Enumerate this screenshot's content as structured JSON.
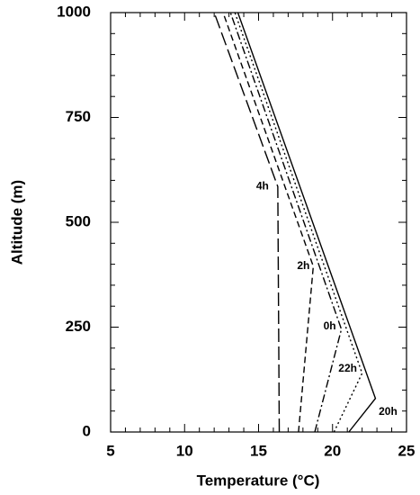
{
  "chart_data": {
    "type": "line",
    "xlabel": "Temperature (°C)",
    "ylabel": "Altitude (m)",
    "xlim": [
      5,
      25
    ],
    "ylim": [
      0,
      1000
    ],
    "xticks": [
      5,
      10,
      15,
      20,
      25
    ],
    "yticks": [
      0,
      250,
      500,
      750,
      1000
    ],
    "xminorticks": [
      6,
      7,
      8,
      9,
      11,
      12,
      13,
      14,
      16,
      17,
      18,
      19,
      21,
      22,
      23,
      24
    ],
    "yminorticks": [
      50,
      100,
      150,
      200,
      300,
      350,
      400,
      450,
      550,
      600,
      650,
      700,
      800,
      850,
      900,
      950
    ],
    "series": [
      {
        "name": "20h",
        "color": "#000000",
        "dash": "none",
        "x": [
          21.1,
          22.9,
          13.6
        ],
        "y": [
          0,
          80,
          1000
        ]
      },
      {
        "name": "22h",
        "color": "#000000",
        "dash": "2,3",
        "x": [
          20.1,
          22.0,
          13.4
        ],
        "y": [
          0,
          140,
          1000
        ]
      },
      {
        "name": "0h",
        "color": "#000000",
        "dash": "9,3,2,3",
        "x": [
          18.8,
          20.6,
          13.1
        ],
        "y": [
          0,
          245,
          1000
        ]
      },
      {
        "name": "2h",
        "color": "#000000",
        "dash": "7,4",
        "x": [
          17.7,
          18.7,
          12.6
        ],
        "y": [
          0,
          395,
          1000
        ]
      },
      {
        "name": "4h",
        "color": "#000000",
        "dash": "15,5",
        "x": [
          16.4,
          16.3,
          12.0
        ],
        "y": [
          0,
          585,
          1000
        ]
      }
    ]
  }
}
